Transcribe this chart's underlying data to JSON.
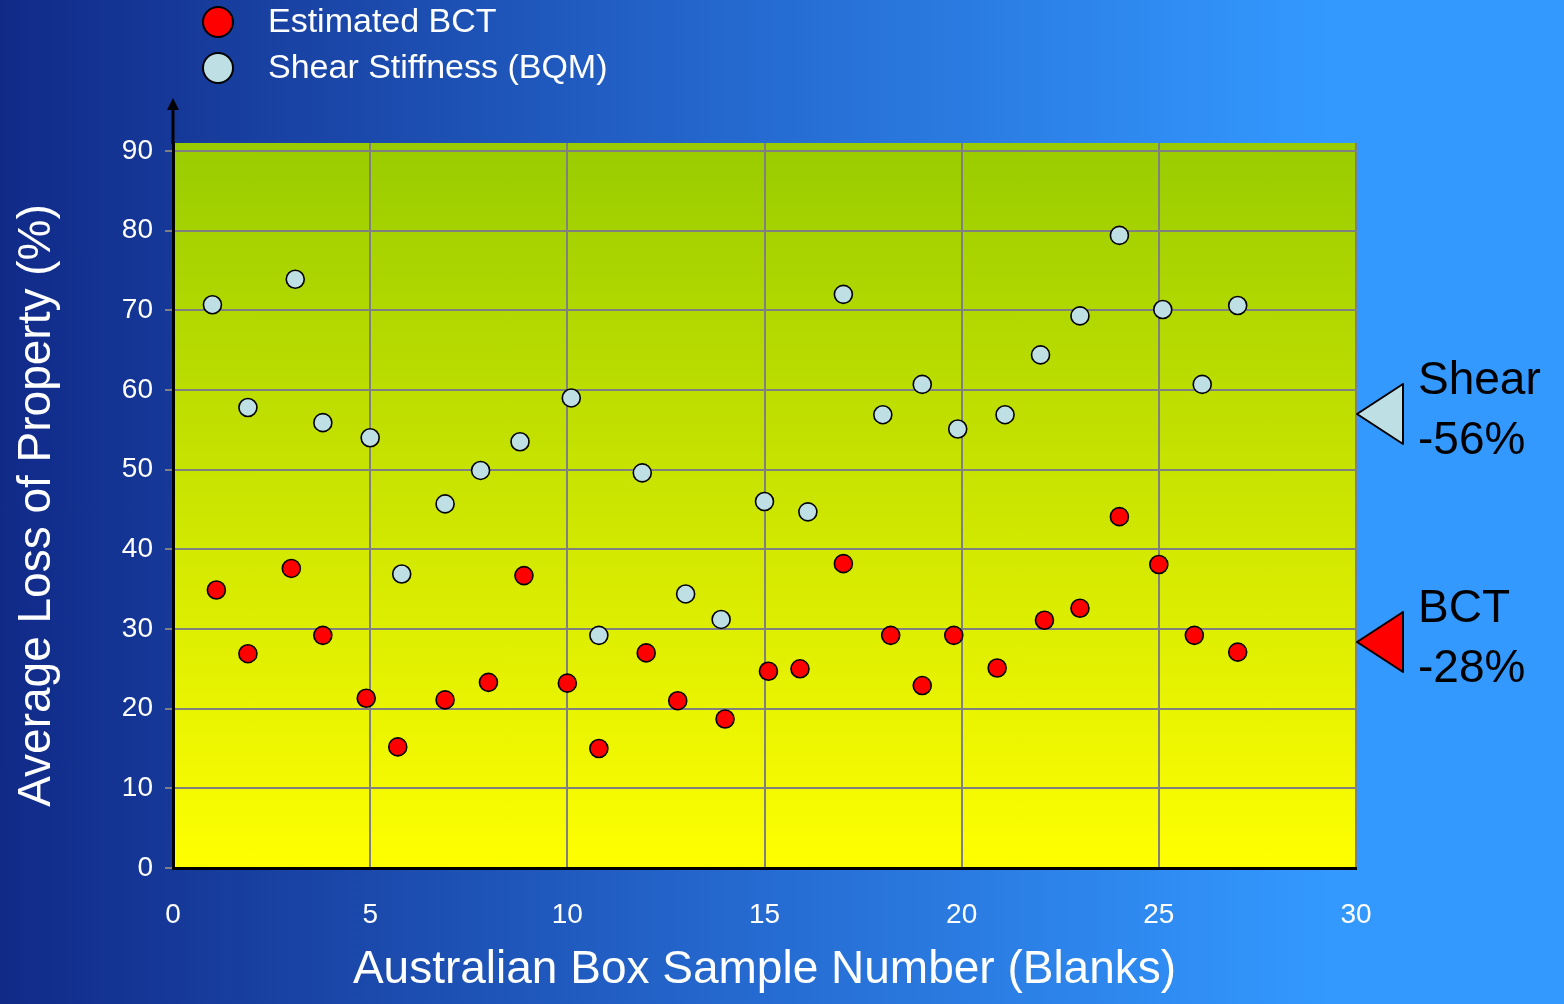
{
  "chart_data": {
    "type": "scatter",
    "xlabel": "Australian Box Sample Number (Blanks)",
    "ylabel": "Average Loss of Property (%)",
    "xlim": [
      0,
      30
    ],
    "xticks": [
      0,
      5,
      10,
      15,
      20,
      25,
      30
    ],
    "ylim": [
      0,
      91
    ],
    "yticks": [
      0,
      10,
      20,
      30,
      40,
      50,
      60,
      70,
      80,
      90
    ],
    "grid": true,
    "legend": "top left",
    "marker": "circle",
    "series": [
      {
        "name": "Estimated BCT",
        "color": "#ff0000",
        "x": [
          1.1,
          1.9,
          3.0,
          3.8,
          4.9,
          5.7,
          6.9,
          8.0,
          8.9,
          10.0,
          10.8,
          12.0,
          12.8,
          14.0,
          15.1,
          15.9,
          17.0,
          18.2,
          19.0,
          19.8,
          20.9,
          22.1,
          23.0,
          24.0,
          25.0,
          25.9,
          27.0
        ],
        "values": [
          34.9,
          26.9,
          37.6,
          29.2,
          21.3,
          15.2,
          21.1,
          23.3,
          36.7,
          23.2,
          15.0,
          27.0,
          21.0,
          18.7,
          24.7,
          25.0,
          38.2,
          29.2,
          22.9,
          29.2,
          25.1,
          31.1,
          32.6,
          44.1,
          38.1,
          29.2,
          27.1
        ]
      },
      {
        "name": "Shear Stiffness (BQM)",
        "color": "#bee0e4",
        "x": [
          1.0,
          1.9,
          3.1,
          3.8,
          5.0,
          5.8,
          6.9,
          7.8,
          8.8,
          10.1,
          10.8,
          11.9,
          13.0,
          13.9,
          15.0,
          16.1,
          17.0,
          18.0,
          19.0,
          19.9,
          21.1,
          22.0,
          23.0,
          24.0,
          25.1,
          26.1,
          27.0
        ],
        "values": [
          70.7,
          57.8,
          73.9,
          55.9,
          54.0,
          36.9,
          45.7,
          49.9,
          53.5,
          59.0,
          29.2,
          49.6,
          34.4,
          31.2,
          46.0,
          44.7,
          72.0,
          56.9,
          60.7,
          55.1,
          56.9,
          64.4,
          69.3,
          79.4,
          70.1,
          60.7,
          70.6
        ]
      }
    ],
    "annotations": [
      "Shear -56%",
      "BCT -28%"
    ]
  }
}
